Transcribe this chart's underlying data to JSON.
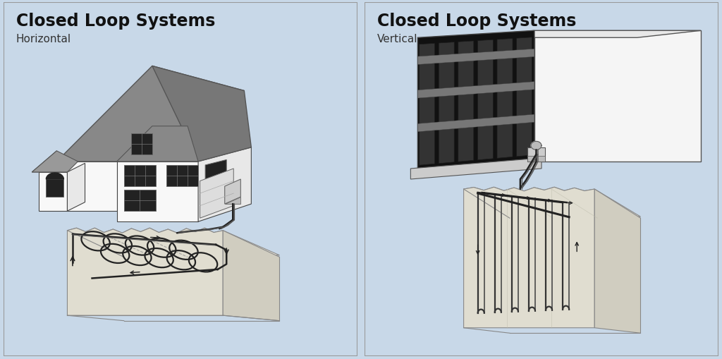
{
  "bg_color": "#c8d8e8",
  "left_title": "Closed Loop Systems",
  "left_subtitle": "Horizontal",
  "right_title": "Closed Loop Systems",
  "right_subtitle": "Vertical",
  "title_fontsize": 17,
  "subtitle_fontsize": 11,
  "roof_dark": "#888888",
  "roof_mid": "#aaaaaa",
  "wall_white": "#f8f8f8",
  "wall_light": "#e8e8e8",
  "wall_shadow": "#d0d0d0",
  "window_dark": "#222222",
  "window_grid": "#888888",
  "ground_top": "#e8e4d4",
  "ground_front": "#d8d4c4",
  "ground_right": "#c8c4b4",
  "pipe_dark": "#222222",
  "pipe_mid": "#555555",
  "building_black": "#111111",
  "building_glass": "#444444",
  "building_stripe": "#777777"
}
